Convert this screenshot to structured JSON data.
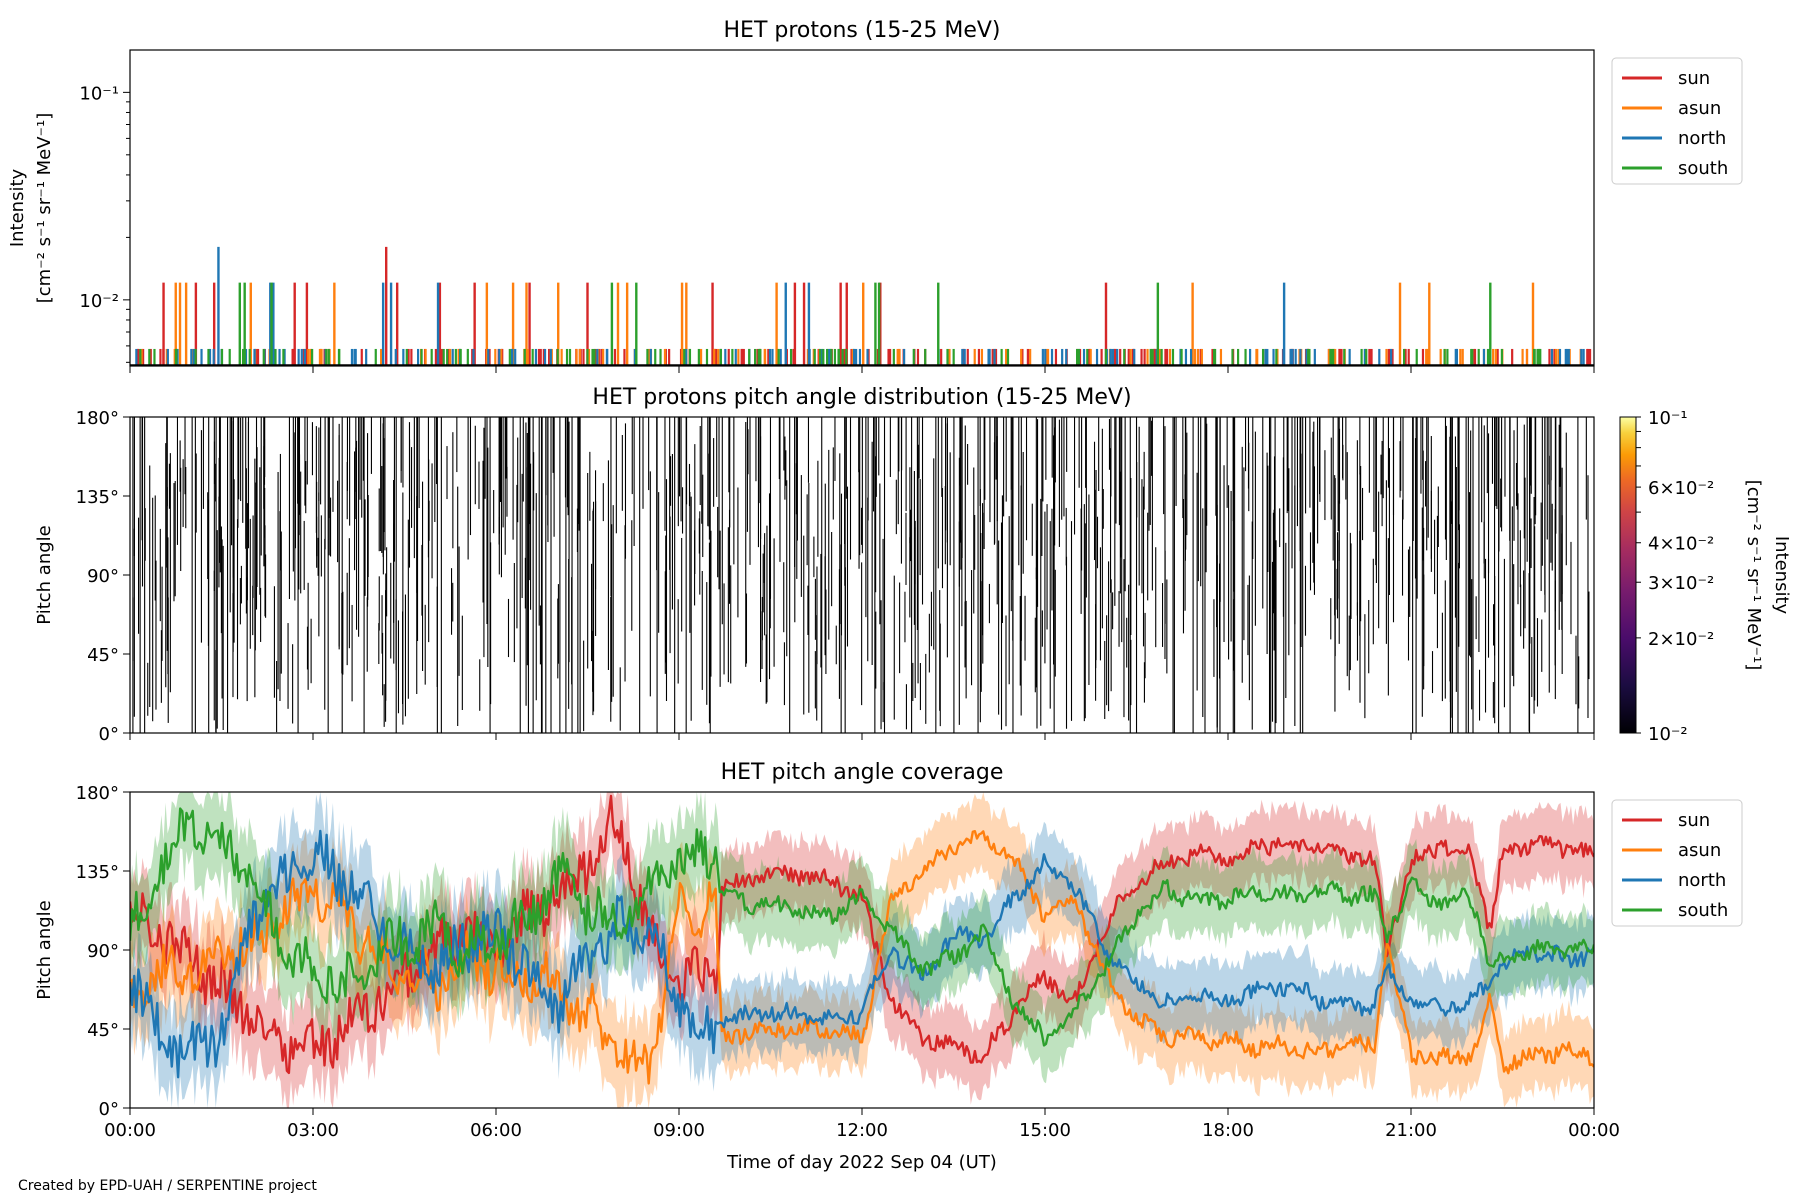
{
  "footer": "Created by EPD-UAH / SERPENTINE project",
  "colors": {
    "sun": "#d62728",
    "asun": "#ff7f0e",
    "north": "#1f77b4",
    "south": "#2ca02c"
  },
  "chart_data": [
    {
      "type": "line",
      "title": "HET protons (15-25 MeV)",
      "ylabel_lines": [
        "Intensity",
        "[cm⁻² s⁻¹ sr⁻¹ MeV⁻¹]"
      ],
      "yscale": "log",
      "ylim": [
        0.0048,
        0.16
      ],
      "yticks": [
        {
          "value": 0.1,
          "label": "10⁻¹"
        },
        {
          "value": 0.01,
          "label": "10⁻²"
        }
      ],
      "legend": "upper-right outside",
      "series": [
        {
          "name": "sun",
          "spikes": [
            [
              0.55,
              0.0121
            ],
            [
              1.08,
              0.0121
            ],
            [
              1.38,
              0.0121
            ],
            [
              2.7,
              0.0121
            ],
            [
              2.9,
              0.0121
            ],
            [
              4.2,
              0.018
            ],
            [
              4.38,
              0.0121
            ],
            [
              5.08,
              0.0121
            ],
            [
              5.65,
              0.0121
            ],
            [
              6.55,
              0.0121
            ],
            [
              7.5,
              0.0121
            ],
            [
              9.55,
              0.0121
            ],
            [
              10.9,
              0.0121
            ],
            [
              11.05,
              0.0121
            ],
            [
              11.65,
              0.0121
            ],
            [
              11.75,
              0.0121
            ],
            [
              12.3,
              0.0121
            ],
            [
              16.0,
              0.0121
            ]
          ],
          "baseline": 0.0058
        },
        {
          "name": "asun",
          "spikes": [
            [
              0.75,
              0.0121
            ],
            [
              0.82,
              0.0121
            ],
            [
              0.92,
              0.0121
            ],
            [
              1.98,
              0.0121
            ],
            [
              3.35,
              0.0121
            ],
            [
              5.85,
              0.0121
            ],
            [
              6.28,
              0.0121
            ],
            [
              6.5,
              0.0121
            ],
            [
              7.02,
              0.0121
            ],
            [
              8.0,
              0.0121
            ],
            [
              8.15,
              0.0121
            ],
            [
              9.05,
              0.0121
            ],
            [
              9.12,
              0.0121
            ],
            [
              10.6,
              0.0121
            ],
            [
              12.02,
              0.0121
            ],
            [
              17.42,
              0.0121
            ],
            [
              20.82,
              0.0121
            ],
            [
              21.3,
              0.0121
            ],
            [
              23.0,
              0.0121
            ]
          ],
          "baseline": 0.0058
        },
        {
          "name": "north",
          "spikes": [
            [
              1.45,
              0.018
            ],
            [
              2.3,
              0.0121
            ],
            [
              2.35,
              0.0121
            ],
            [
              4.15,
              0.0121
            ],
            [
              4.28,
              0.0121
            ],
            [
              5.05,
              0.0121
            ],
            [
              10.75,
              0.0121
            ],
            [
              11.13,
              0.0121
            ],
            [
              18.92,
              0.0121
            ]
          ],
          "baseline": 0.0058
        },
        {
          "name": "south",
          "spikes": [
            [
              1.8,
              0.0121
            ],
            [
              1.88,
              0.0121
            ],
            [
              2.32,
              0.0121
            ],
            [
              7.9,
              0.0121
            ],
            [
              8.3,
              0.0121
            ],
            [
              12.22,
              0.0121
            ],
            [
              12.28,
              0.0121
            ],
            [
              13.25,
              0.0121
            ],
            [
              16.85,
              0.0121
            ],
            [
              22.3,
              0.0121
            ]
          ],
          "baseline": 0.0058
        }
      ]
    },
    {
      "type": "heatmap",
      "title": "HET protons pitch angle distribution (15-25 MeV)",
      "ylabel": "Pitch angle",
      "ylim": [
        0,
        180
      ],
      "yticks": [
        "0°",
        "45°",
        "90°",
        "135°",
        "180°"
      ],
      "colorbar": {
        "label_lines": [
          "Intensity",
          "[cm⁻² s⁻¹ sr⁻¹ MeV⁻¹]"
        ],
        "scale": "log",
        "range": [
          0.01,
          0.1
        ],
        "ticks": [
          {
            "value": 0.1,
            "label": "10⁻¹"
          },
          {
            "value": 0.06,
            "label": "6×10⁻²"
          },
          {
            "value": 0.04,
            "label": "4×10⁻²"
          },
          {
            "value": 0.03,
            "label": "3×10⁻²"
          },
          {
            "value": 0.02,
            "label": "2×10⁻²"
          },
          {
            "value": 0.01,
            "label": "10⁻²"
          }
        ]
      }
    },
    {
      "type": "area",
      "title": "HET pitch angle coverage",
      "ylabel": "Pitch angle",
      "xlabel": "Time of day 2022 Sep 04 (UT)",
      "ylim": [
        0,
        180
      ],
      "yticks": [
        "0°",
        "45°",
        "90°",
        "135°",
        "180°"
      ],
      "xlim": [
        0,
        24
      ],
      "xticks": [
        "00:00",
        "03:00",
        "06:00",
        "09:00",
        "12:00",
        "15:00",
        "18:00",
        "21:00",
        "00:00"
      ],
      "legend": "upper-right outside",
      "series": [
        {
          "name": "sun",
          "t": [
            0,
            0.5,
            1,
            1.5,
            2,
            2.5,
            3,
            3.5,
            4,
            4.5,
            5,
            5.5,
            6,
            6.5,
            7,
            7.5,
            8,
            8.5,
            9,
            9.6,
            9.7,
            10.5,
            11.5,
            12.0,
            12.5,
            13,
            13.5,
            14,
            14.5,
            15,
            15.5,
            16,
            16.5,
            17,
            17.5,
            18,
            18.5,
            19,
            19.5,
            20,
            20.4,
            20.6,
            21,
            21.5,
            22,
            22.3,
            22.5,
            23,
            23.5,
            24
          ],
          "v": [
            110,
            100,
            85,
            70,
            50,
            40,
            35,
            45,
            60,
            75,
            90,
            100,
            85,
            110,
            120,
            140,
            165,
            100,
            70,
            80,
            125,
            135,
            130,
            120,
            60,
            40,
            35,
            30,
            55,
            75,
            60,
            105,
            130,
            140,
            145,
            140,
            150,
            150,
            148,
            145,
            140,
            90,
            140,
            150,
            145,
            100,
            145,
            150,
            148,
            145
          ]
        },
        {
          "name": "asun",
          "t": [
            0,
            0.5,
            1,
            1.5,
            2,
            2.5,
            3,
            3.5,
            4,
            4.5,
            5,
            5.5,
            6,
            6.5,
            7,
            7.5,
            8,
            8.5,
            9,
            9.6,
            9.7,
            10.5,
            11.5,
            12.0,
            12.5,
            13,
            13.5,
            14,
            14.5,
            15,
            15.5,
            16,
            16.5,
            17,
            17.5,
            18,
            18.5,
            19,
            19.5,
            20,
            20.4,
            20.6,
            21,
            21.5,
            22,
            22.3,
            22.5,
            23,
            23.5,
            24
          ],
          "v": [
            60,
            75,
            80,
            85,
            95,
            110,
            125,
            110,
            90,
            80,
            70,
            85,
            80,
            75,
            70,
            55,
            35,
            20,
            110,
            120,
            40,
            45,
            45,
            40,
            120,
            135,
            150,
            155,
            140,
            110,
            120,
            75,
            50,
            40,
            40,
            38,
            35,
            35,
            32,
            35,
            35,
            95,
            30,
            28,
            30,
            60,
            25,
            30,
            32,
            30
          ]
        },
        {
          "name": "north",
          "t": [
            0,
            0.5,
            1,
            1.5,
            2,
            2.5,
            3,
            3.5,
            4,
            4.5,
            5,
            5.5,
            6,
            6.5,
            7,
            7.5,
            8,
            8.5,
            9,
            9.6,
            9.7,
            10.5,
            11.5,
            12.0,
            12.5,
            13,
            13.5,
            14,
            14.5,
            15,
            15.5,
            16,
            16.5,
            17,
            17.5,
            18,
            18.5,
            19,
            19.5,
            20,
            20.4,
            20.6,
            21,
            21.5,
            22,
            22.3,
            22.5,
            23,
            23.5,
            24
          ],
          "v": [
            80,
            40,
            30,
            45,
            110,
            130,
            145,
            130,
            110,
            90,
            80,
            95,
            100,
            80,
            60,
            85,
            105,
            100,
            60,
            40,
            50,
            55,
            50,
            55,
            90,
            75,
            100,
            95,
            120,
            140,
            125,
            90,
            70,
            60,
            65,
            60,
            68,
            70,
            62,
            58,
            60,
            80,
            62,
            58,
            60,
            75,
            80,
            90,
            85,
            88
          ]
        },
        {
          "name": "south",
          "t": [
            0,
            0.5,
            1,
            1.5,
            2,
            2.5,
            3,
            3.5,
            4,
            4.5,
            5,
            5.5,
            6,
            6.5,
            7,
            7.5,
            8,
            8.5,
            9,
            9.6,
            9.7,
            10.5,
            11.5,
            12.0,
            12.5,
            13,
            13.5,
            14,
            14.5,
            15,
            15.5,
            16,
            16.5,
            17,
            17.5,
            18,
            18.5,
            19,
            19.5,
            20,
            20.4,
            20.6,
            21,
            21.5,
            22,
            22.3,
            22.5,
            23,
            23.5,
            24
          ],
          "v": [
            95,
            140,
            160,
            150,
            130,
            95,
            80,
            70,
            85,
            95,
            100,
            90,
            95,
            110,
            130,
            115,
            100,
            125,
            140,
            150,
            120,
            115,
            110,
            120,
            100,
            80,
            85,
            100,
            60,
            40,
            55,
            80,
            110,
            125,
            118,
            120,
            122,
            120,
            125,
            122,
            120,
            100,
            125,
            118,
            120,
            80,
            85,
            90,
            92,
            90
          ]
        }
      ]
    }
  ]
}
